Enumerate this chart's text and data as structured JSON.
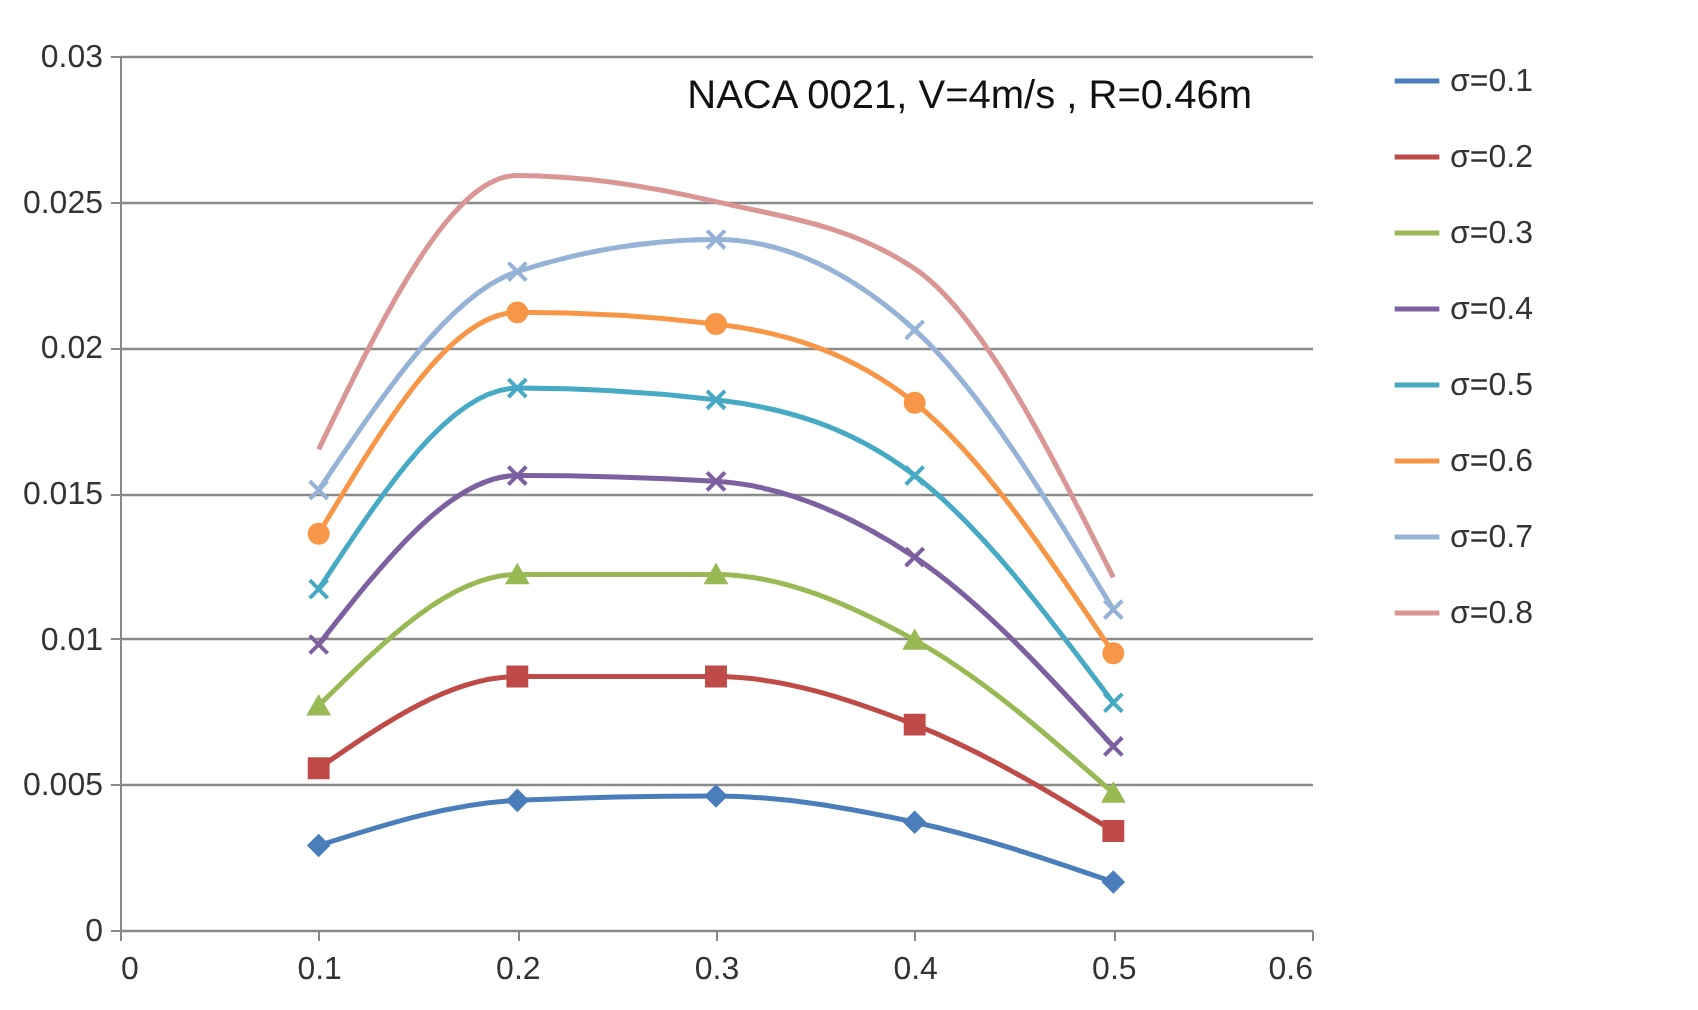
{
  "chart_data": {
    "type": "line",
    "title": "NACA 0021, V=4m/s , R=0.46m",
    "x": [
      0.1,
      0.2,
      0.3,
      0.4,
      0.5
    ],
    "xlim": [
      0,
      0.6
    ],
    "xticks": [
      0,
      0.1,
      0.2,
      0.3,
      0.4,
      0.5,
      0.6
    ],
    "ylim": [
      0,
      0.03
    ],
    "yticks": [
      0,
      0.005,
      0.01,
      0.015,
      0.02,
      0.025,
      0.03
    ],
    "grid": "y",
    "legend": "right",
    "series": [
      {
        "name": "σ=0.1",
        "color": "#4a7ebb",
        "marker": "diamond",
        "values": [
          0.0029,
          0.00445,
          0.0046,
          0.0037,
          0.00165
        ]
      },
      {
        "name": "σ=0.2",
        "color": "#be4b48",
        "marker": "square",
        "values": [
          0.00555,
          0.0087,
          0.0087,
          0.00705,
          0.0034
        ]
      },
      {
        "name": "σ=0.3",
        "color": "#98b954",
        "marker": "triangle",
        "values": [
          0.0077,
          0.0122,
          0.0122,
          0.00995,
          0.0047
        ]
      },
      {
        "name": "σ=0.4",
        "color": "#7d60a0",
        "marker": "cross",
        "values": [
          0.0098,
          0.0156,
          0.0154,
          0.0128,
          0.0063
        ]
      },
      {
        "name": "σ=0.5",
        "color": "#46aac5",
        "marker": "cross",
        "values": [
          0.0117,
          0.0186,
          0.0182,
          0.0156,
          0.0078
        ]
      },
      {
        "name": "σ=0.6",
        "color": "#f79646",
        "marker": "circle",
        "values": [
          0.0136,
          0.0212,
          0.0208,
          0.0181,
          0.0095
        ]
      },
      {
        "name": "σ=0.7",
        "color": "#95b3d7",
        "marker": "cross",
        "values": [
          0.0151,
          0.0226,
          0.0237,
          0.0206,
          0.011
        ]
      },
      {
        "name": "σ=0.8",
        "color": "#d99694",
        "marker": "none",
        "values": [
          0.0165,
          0.0259,
          0.025,
          0.0227,
          0.0121
        ]
      }
    ]
  }
}
